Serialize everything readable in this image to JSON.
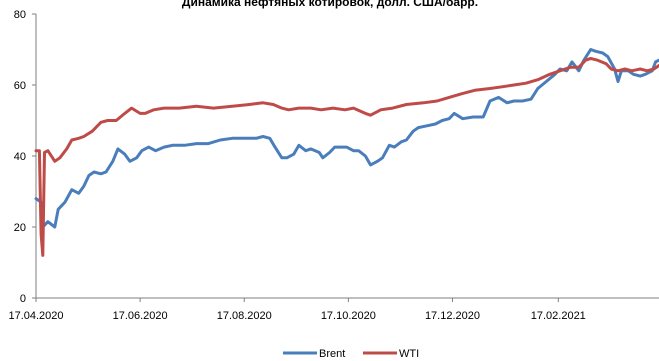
{
  "chart_data": {
    "type": "line",
    "title": "Динамика нефтяных котировок, долл. США/барр.",
    "xlabel": "",
    "ylabel": "",
    "ylim": [
      0,
      80
    ],
    "yticks": [
      0,
      20,
      40,
      60,
      80
    ],
    "xlim": [
      "2020-04-17",
      "2021-04-17"
    ],
    "xticks": [
      {
        "date": "2020-04-17",
        "label": "17.04.2020"
      },
      {
        "date": "2020-06-17",
        "label": "17.06.2020"
      },
      {
        "date": "2020-08-17",
        "label": "17.08.2020"
      },
      {
        "date": "2020-10-17",
        "label": "17.10.2020"
      },
      {
        "date": "2020-12-17",
        "label": "17.12.2020"
      },
      {
        "date": "2021-02-17",
        "label": "17.02.2021"
      }
    ],
    "grid": false,
    "legend_position": "bottom-center",
    "series": [
      {
        "name": "Brent",
        "color": "#4a7ebb",
        "points": [
          [
            "2020-04-17",
            28
          ],
          [
            "2020-04-20",
            27
          ],
          [
            "2020-04-21",
            20
          ],
          [
            "2020-04-22",
            20.5
          ],
          [
            "2020-04-24",
            21.5
          ],
          [
            "2020-04-28",
            20
          ],
          [
            "2020-04-30",
            25
          ],
          [
            "2020-05-04",
            27
          ],
          [
            "2020-05-08",
            30.5
          ],
          [
            "2020-05-12",
            29.5
          ],
          [
            "2020-05-15",
            31.5
          ],
          [
            "2020-05-18",
            34.5
          ],
          [
            "2020-05-21",
            35.5
          ],
          [
            "2020-05-25",
            35
          ],
          [
            "2020-05-28",
            35.5
          ],
          [
            "2020-06-01",
            38.5
          ],
          [
            "2020-06-04",
            42
          ],
          [
            "2020-06-08",
            40.5
          ],
          [
            "2020-06-11",
            38.5
          ],
          [
            "2020-06-15",
            39.5
          ],
          [
            "2020-06-18",
            41.5
          ],
          [
            "2020-06-22",
            42.5
          ],
          [
            "2020-06-26",
            41.5
          ],
          [
            "2020-07-01",
            42.5
          ],
          [
            "2020-07-06",
            43
          ],
          [
            "2020-07-13",
            43
          ],
          [
            "2020-07-20",
            43.5
          ],
          [
            "2020-07-27",
            43.5
          ],
          [
            "2020-08-03",
            44.5
          ],
          [
            "2020-08-10",
            45
          ],
          [
            "2020-08-17",
            45
          ],
          [
            "2020-08-24",
            45
          ],
          [
            "2020-08-28",
            45.5
          ],
          [
            "2020-09-01",
            45
          ],
          [
            "2020-09-04",
            42.5
          ],
          [
            "2020-09-08",
            39.5
          ],
          [
            "2020-09-11",
            39.5
          ],
          [
            "2020-09-15",
            40.5
          ],
          [
            "2020-09-18",
            43
          ],
          [
            "2020-09-22",
            41.5
          ],
          [
            "2020-09-25",
            42
          ],
          [
            "2020-09-30",
            41
          ],
          [
            "2020-10-02",
            39.5
          ],
          [
            "2020-10-06",
            41
          ],
          [
            "2020-10-09",
            42.5
          ],
          [
            "2020-10-13",
            42.5
          ],
          [
            "2020-10-16",
            42.5
          ],
          [
            "2020-10-20",
            41.5
          ],
          [
            "2020-10-23",
            41.5
          ],
          [
            "2020-10-27",
            40
          ],
          [
            "2020-10-30",
            37.5
          ],
          [
            "2020-11-03",
            38.5
          ],
          [
            "2020-11-06",
            39.5
          ],
          [
            "2020-11-10",
            43
          ],
          [
            "2020-11-13",
            42.5
          ],
          [
            "2020-11-17",
            44
          ],
          [
            "2020-11-20",
            44.5
          ],
          [
            "2020-11-24",
            47
          ],
          [
            "2020-11-27",
            48
          ],
          [
            "2020-12-02",
            48.5
          ],
          [
            "2020-12-07",
            49
          ],
          [
            "2020-12-11",
            50
          ],
          [
            "2020-12-15",
            50.5
          ],
          [
            "2020-12-18",
            52
          ],
          [
            "2020-12-23",
            50.5
          ],
          [
            "2020-12-29",
            51
          ],
          [
            "2021-01-04",
            51
          ],
          [
            "2021-01-08",
            55.5
          ],
          [
            "2021-01-13",
            56.5
          ],
          [
            "2021-01-18",
            55
          ],
          [
            "2021-01-22",
            55.5
          ],
          [
            "2021-01-27",
            55.5
          ],
          [
            "2021-02-01",
            56
          ],
          [
            "2021-02-05",
            59
          ],
          [
            "2021-02-10",
            61
          ],
          [
            "2021-02-15",
            63
          ],
          [
            "2021-02-18",
            64.5
          ],
          [
            "2021-02-22",
            64
          ],
          [
            "2021-02-25",
            66.5
          ],
          [
            "2021-03-01",
            64
          ],
          [
            "2021-03-04",
            67
          ],
          [
            "2021-03-08",
            70
          ],
          [
            "2021-03-11",
            69.5
          ],
          [
            "2021-03-15",
            69
          ],
          [
            "2021-03-18",
            68
          ],
          [
            "2021-03-22",
            64.5
          ],
          [
            "2021-03-24",
            61
          ],
          [
            "2021-03-26",
            64
          ],
          [
            "2021-03-30",
            64
          ],
          [
            "2021-04-02",
            63
          ],
          [
            "2021-04-06",
            62.5
          ],
          [
            "2021-04-09",
            63
          ],
          [
            "2021-04-13",
            64
          ],
          [
            "2021-04-15",
            66.5
          ],
          [
            "2021-04-17",
            67
          ]
        ]
      },
      {
        "name": "WTI",
        "color": "#be4b48",
        "points": [
          [
            "2020-04-17",
            41.5
          ],
          [
            "2020-04-19",
            41.5
          ],
          [
            "2020-04-20",
            18
          ],
          [
            "2020-04-21",
            12
          ],
          [
            "2020-04-22",
            41
          ],
          [
            "2020-04-24",
            41.5
          ],
          [
            "2020-04-28",
            38.5
          ],
          [
            "2020-05-01",
            39.5
          ],
          [
            "2020-05-05",
            42
          ],
          [
            "2020-05-08",
            44.5
          ],
          [
            "2020-05-12",
            45
          ],
          [
            "2020-05-15",
            45.5
          ],
          [
            "2020-05-20",
            47
          ],
          [
            "2020-05-25",
            49.5
          ],
          [
            "2020-05-29",
            50
          ],
          [
            "2020-06-03",
            50
          ],
          [
            "2020-06-08",
            52
          ],
          [
            "2020-06-12",
            53.5
          ],
          [
            "2020-06-17",
            52
          ],
          [
            "2020-06-20",
            52
          ],
          [
            "2020-06-25",
            53
          ],
          [
            "2020-07-01",
            53.5
          ],
          [
            "2020-07-10",
            53.5
          ],
          [
            "2020-07-20",
            54
          ],
          [
            "2020-07-30",
            53.5
          ],
          [
            "2020-08-10",
            54
          ],
          [
            "2020-08-20",
            54.5
          ],
          [
            "2020-08-28",
            55
          ],
          [
            "2020-09-03",
            54.5
          ],
          [
            "2020-09-08",
            53.5
          ],
          [
            "2020-09-12",
            53
          ],
          [
            "2020-09-18",
            53.5
          ],
          [
            "2020-09-25",
            53.5
          ],
          [
            "2020-10-01",
            53
          ],
          [
            "2020-10-08",
            53.5
          ],
          [
            "2020-10-15",
            53
          ],
          [
            "2020-10-20",
            53.5
          ],
          [
            "2020-10-27",
            52
          ],
          [
            "2020-10-30",
            51.5
          ],
          [
            "2020-11-05",
            53
          ],
          [
            "2020-11-12",
            53.5
          ],
          [
            "2020-11-20",
            54.5
          ],
          [
            "2020-11-30",
            55
          ],
          [
            "2020-12-08",
            55.5
          ],
          [
            "2020-12-15",
            56.5
          ],
          [
            "2020-12-22",
            57.5
          ],
          [
            "2020-12-30",
            58.5
          ],
          [
            "2021-01-08",
            59
          ],
          [
            "2021-01-15",
            59.5
          ],
          [
            "2021-01-22",
            60
          ],
          [
            "2021-01-29",
            60.5
          ],
          [
            "2021-02-05",
            61.5
          ],
          [
            "2021-02-12",
            63
          ],
          [
            "2021-02-18",
            64
          ],
          [
            "2021-02-24",
            65
          ],
          [
            "2021-03-01",
            65
          ],
          [
            "2021-03-05",
            67
          ],
          [
            "2021-03-08",
            67.5
          ],
          [
            "2021-03-12",
            67
          ],
          [
            "2021-03-17",
            66
          ],
          [
            "2021-03-20",
            64.5
          ],
          [
            "2021-03-24",
            64
          ],
          [
            "2021-03-28",
            64.5
          ],
          [
            "2021-04-01",
            64
          ],
          [
            "2021-04-06",
            64.5
          ],
          [
            "2021-04-10",
            64
          ],
          [
            "2021-04-14",
            64.5
          ],
          [
            "2021-04-17",
            65.5
          ]
        ]
      }
    ]
  }
}
